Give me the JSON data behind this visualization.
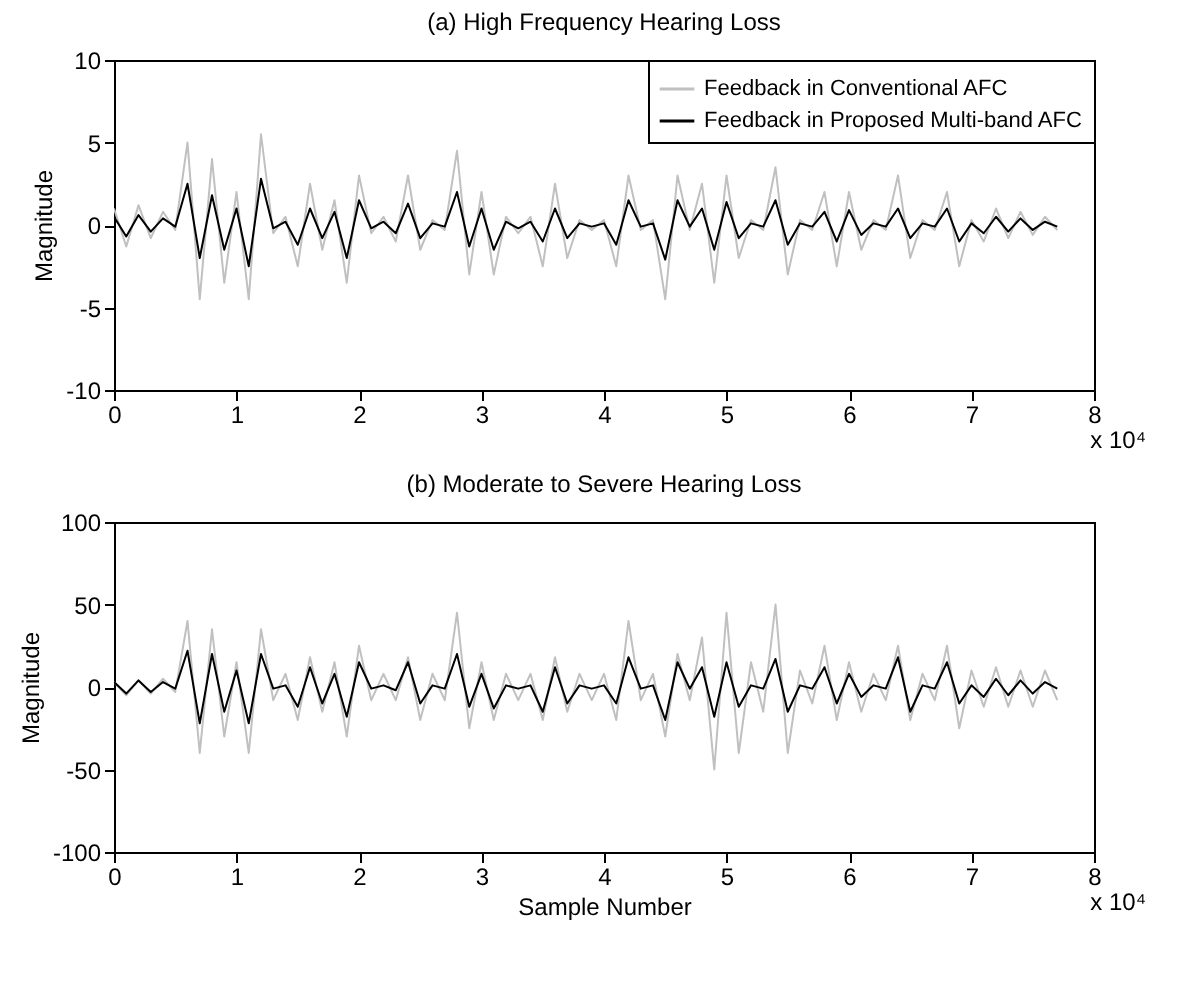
{
  "chart_data": [
    {
      "type": "line",
      "title": "(a) High Frequency Hearing Loss",
      "ylabel": "Magnitude",
      "annotations": [
        "x 10⁴"
      ],
      "legend": "top right",
      "grid": false,
      "line_style": "solid",
      "marker": "none",
      "x": [
        0,
        0.1,
        0.2,
        0.3,
        0.4,
        0.5,
        0.6,
        0.7,
        0.8,
        0.9,
        1.0,
        1.1,
        1.2,
        1.3,
        1.4,
        1.5,
        1.6,
        1.7,
        1.8,
        1.9,
        2.0,
        2.1,
        2.2,
        2.3,
        2.4,
        2.5,
        2.6,
        2.7,
        2.8,
        2.9,
        3.0,
        3.1,
        3.2,
        3.3,
        3.4,
        3.5,
        3.6,
        3.7,
        3.8,
        3.9,
        4.0,
        4.1,
        4.2,
        4.3,
        4.4,
        4.5,
        4.6,
        4.7,
        4.8,
        4.9,
        5.0,
        5.1,
        5.2,
        5.3,
        5.4,
        5.5,
        5.6,
        5.7,
        5.8,
        5.9,
        6.0,
        6.1,
        6.2,
        6.3,
        6.4,
        6.5,
        6.6,
        6.7,
        6.8,
        6.9,
        7.0,
        7.1,
        7.2,
        7.3,
        7.4,
        7.5,
        7.6,
        7.7
      ],
      "xlim": [
        0,
        8
      ],
      "xticks": [
        0,
        1,
        2,
        3,
        4,
        5,
        6,
        7,
        8
      ],
      "ylim": [
        -10,
        10
      ],
      "yticks": [
        -10,
        -5,
        0,
        5,
        10
      ],
      "series": [
        {
          "name": "Feedback in Conventional AFC",
          "color": "#c0c0c0",
          "values": [
            1.0,
            -1.3,
            1.2,
            -0.8,
            0.8,
            -0.3,
            5.0,
            -4.5,
            4.0,
            -3.5,
            2.0,
            -4.5,
            5.5,
            -0.5,
            0.5,
            -2.5,
            2.5,
            -1.5,
            1.5,
            -3.5,
            3.0,
            -0.5,
            0.5,
            -1.0,
            3.0,
            -1.5,
            0.3,
            -0.3,
            4.5,
            -3.0,
            2.0,
            -3.0,
            0.5,
            -0.5,
            0.5,
            -2.5,
            2.5,
            -2.0,
            0.3,
            -0.3,
            0.3,
            -2.5,
            3.0,
            -0.3,
            0.3,
            -4.5,
            3.0,
            -0.3,
            2.5,
            -3.5,
            3.0,
            -2.0,
            0.3,
            -0.3,
            3.5,
            -3.0,
            0.3,
            -0.3,
            2.0,
            -2.5,
            2.0,
            -1.5,
            0.3,
            -0.3,
            3.0,
            -2.0,
            0.3,
            -0.3,
            2.0,
            -2.5,
            0.3,
            -1.0,
            1.0,
            -0.8,
            0.8,
            -0.6,
            0.5,
            -0.3
          ]
        },
        {
          "name": "Feedback in Proposed Multi-band AFC",
          "color": "#000000",
          "values": [
            0.5,
            -0.7,
            0.6,
            -0.4,
            0.4,
            -0.1,
            2.5,
            -2.0,
            1.8,
            -1.5,
            1.0,
            -2.5,
            2.8,
            -0.2,
            0.2,
            -1.2,
            1.0,
            -0.8,
            0.8,
            -2.0,
            1.5,
            -0.2,
            0.2,
            -0.5,
            1.3,
            -0.8,
            0.1,
            -0.1,
            2.0,
            -1.3,
            1.0,
            -1.5,
            0.2,
            -0.2,
            0.2,
            -1.0,
            1.0,
            -0.8,
            0.1,
            -0.1,
            0.1,
            -1.2,
            1.5,
            -0.1,
            0.1,
            -2.1,
            1.5,
            -0.1,
            1.0,
            -1.5,
            1.4,
            -0.8,
            0.1,
            -0.1,
            1.5,
            -1.2,
            0.1,
            -0.1,
            0.8,
            -1.0,
            0.9,
            -0.6,
            0.1,
            -0.1,
            1.0,
            -0.8,
            0.1,
            -0.1,
            1.0,
            -1.0,
            0.1,
            -0.5,
            0.5,
            -0.4,
            0.4,
            -0.3,
            0.2,
            -0.1
          ]
        }
      ]
    },
    {
      "type": "line",
      "title": "(b) Moderate to Severe Hearing Loss",
      "xlabel": "Sample Number",
      "ylabel": "Magnitude",
      "annotations": [
        "x 10⁴"
      ],
      "grid": false,
      "line_style": "solid",
      "marker": "none",
      "x": [
        0,
        0.1,
        0.2,
        0.3,
        0.4,
        0.5,
        0.6,
        0.7,
        0.8,
        0.9,
        1.0,
        1.1,
        1.2,
        1.3,
        1.4,
        1.5,
        1.6,
        1.7,
        1.8,
        1.9,
        2.0,
        2.1,
        2.2,
        2.3,
        2.4,
        2.5,
        2.6,
        2.7,
        2.8,
        2.9,
        3.0,
        3.1,
        3.2,
        3.3,
        3.4,
        3.5,
        3.6,
        3.7,
        3.8,
        3.9,
        4.0,
        4.1,
        4.2,
        4.3,
        4.4,
        4.5,
        4.6,
        4.7,
        4.8,
        4.9,
        5.0,
        5.1,
        5.2,
        5.3,
        5.4,
        5.5,
        5.6,
        5.7,
        5.8,
        5.9,
        6.0,
        6.1,
        6.2,
        6.3,
        6.4,
        6.5,
        6.6,
        6.7,
        6.8,
        6.9,
        7.0,
        7.1,
        7.2,
        7.3,
        7.4,
        7.5,
        7.6,
        7.7
      ],
      "xlim": [
        0,
        8
      ],
      "xticks": [
        0,
        1,
        2,
        3,
        4,
        5,
        6,
        7,
        8
      ],
      "ylim": [
        -100,
        100
      ],
      "yticks": [
        -100,
        -50,
        0,
        50,
        100
      ],
      "series": [
        {
          "color": "#c0c0c0",
          "values": [
            3,
            -5,
            4,
            -4,
            5,
            -3,
            40,
            -40,
            35,
            -30,
            15,
            -40,
            35,
            -8,
            8,
            -20,
            18,
            -15,
            15,
            -30,
            25,
            -8,
            8,
            -8,
            18,
            -20,
            8,
            -8,
            45,
            -25,
            15,
            -20,
            8,
            -8,
            8,
            -20,
            18,
            -15,
            8,
            -8,
            8,
            -20,
            40,
            -8,
            8,
            -30,
            20,
            -8,
            30,
            -50,
            45,
            -40,
            15,
            -15,
            50,
            -40,
            10,
            -10,
            25,
            -20,
            15,
            -15,
            8,
            -8,
            25,
            -20,
            8,
            -8,
            25,
            -25,
            10,
            -12,
            12,
            -12,
            10,
            -12,
            10,
            -8
          ]
        },
        {
          "color": "#000000",
          "values": [
            3,
            -4,
            4,
            -3,
            3,
            -1,
            22,
            -22,
            20,
            -15,
            10,
            -22,
            20,
            -1,
            1,
            -12,
            12,
            -10,
            8,
            -18,
            15,
            -1,
            1,
            -2,
            15,
            -10,
            1,
            -1,
            20,
            -12,
            8,
            -13,
            1,
            -1,
            1,
            -15,
            12,
            -10,
            1,
            -1,
            1,
            -10,
            18,
            -1,
            1,
            -20,
            15,
            -1,
            12,
            -18,
            15,
            -12,
            1,
            -1,
            17,
            -15,
            1,
            -1,
            12,
            -10,
            8,
            -6,
            1,
            -1,
            18,
            -15,
            1,
            -1,
            15,
            -10,
            1,
            -6,
            5,
            -5,
            4,
            -4,
            3,
            -1
          ]
        }
      ]
    }
  ]
}
